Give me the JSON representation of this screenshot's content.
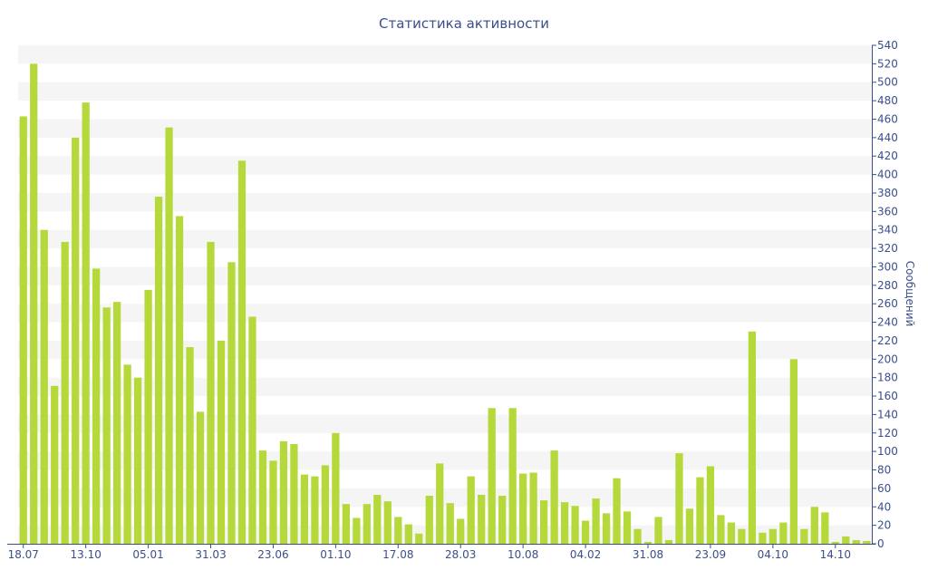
{
  "chart_data": {
    "type": "bar",
    "title": "Статистика активности",
    "xlabel": "",
    "ylabel": "Сообщений",
    "ylim": [
      0,
      540
    ],
    "y_ticks": [
      0,
      20,
      40,
      60,
      80,
      100,
      120,
      140,
      160,
      180,
      200,
      220,
      240,
      260,
      280,
      300,
      320,
      340,
      360,
      380,
      400,
      420,
      440,
      460,
      480,
      500,
      520,
      540
    ],
    "x_tick_labels": [
      {
        "index": 0,
        "label": "18.07"
      },
      {
        "index": 6,
        "label": "13.10"
      },
      {
        "index": 12,
        "label": "05.01"
      },
      {
        "index": 18,
        "label": "31.03"
      },
      {
        "index": 24,
        "label": "23.06"
      },
      {
        "index": 30,
        "label": "01.10"
      },
      {
        "index": 36,
        "label": "17.08"
      },
      {
        "index": 42,
        "label": "28.03"
      },
      {
        "index": 48,
        "label": "10.08"
      },
      {
        "index": 54,
        "label": "04.02"
      },
      {
        "index": 60,
        "label": "31.08"
      },
      {
        "index": 66,
        "label": "23.09"
      },
      {
        "index": 72,
        "label": "04.10"
      },
      {
        "index": 78,
        "label": "14.10"
      }
    ],
    "values": [
      463,
      520,
      340,
      171,
      327,
      440,
      478,
      298,
      256,
      262,
      194,
      180,
      275,
      376,
      451,
      355,
      213,
      143,
      327,
      220,
      305,
      415,
      246,
      101,
      90,
      111,
      108,
      75,
      73,
      85,
      120,
      43,
      28,
      43,
      53,
      46,
      29,
      21,
      11,
      52,
      87,
      44,
      27,
      73,
      53,
      147,
      52,
      147,
      76,
      77,
      47,
      101,
      45,
      41,
      25,
      49,
      33,
      71,
      35,
      16,
      2,
      29,
      4,
      98,
      38,
      72,
      84,
      31,
      23,
      16,
      230,
      12,
      16,
      23,
      200,
      16,
      40,
      34,
      2,
      8,
      4,
      3
    ],
    "grid": true,
    "grid_style": "alternating horizontal bands",
    "legend": "none",
    "y_axis_side": "right"
  },
  "colors": {
    "bar": "#b5d93a",
    "text": "#3a4f8c",
    "band": "#f5f5f5",
    "axis": "#3a4f8c"
  }
}
